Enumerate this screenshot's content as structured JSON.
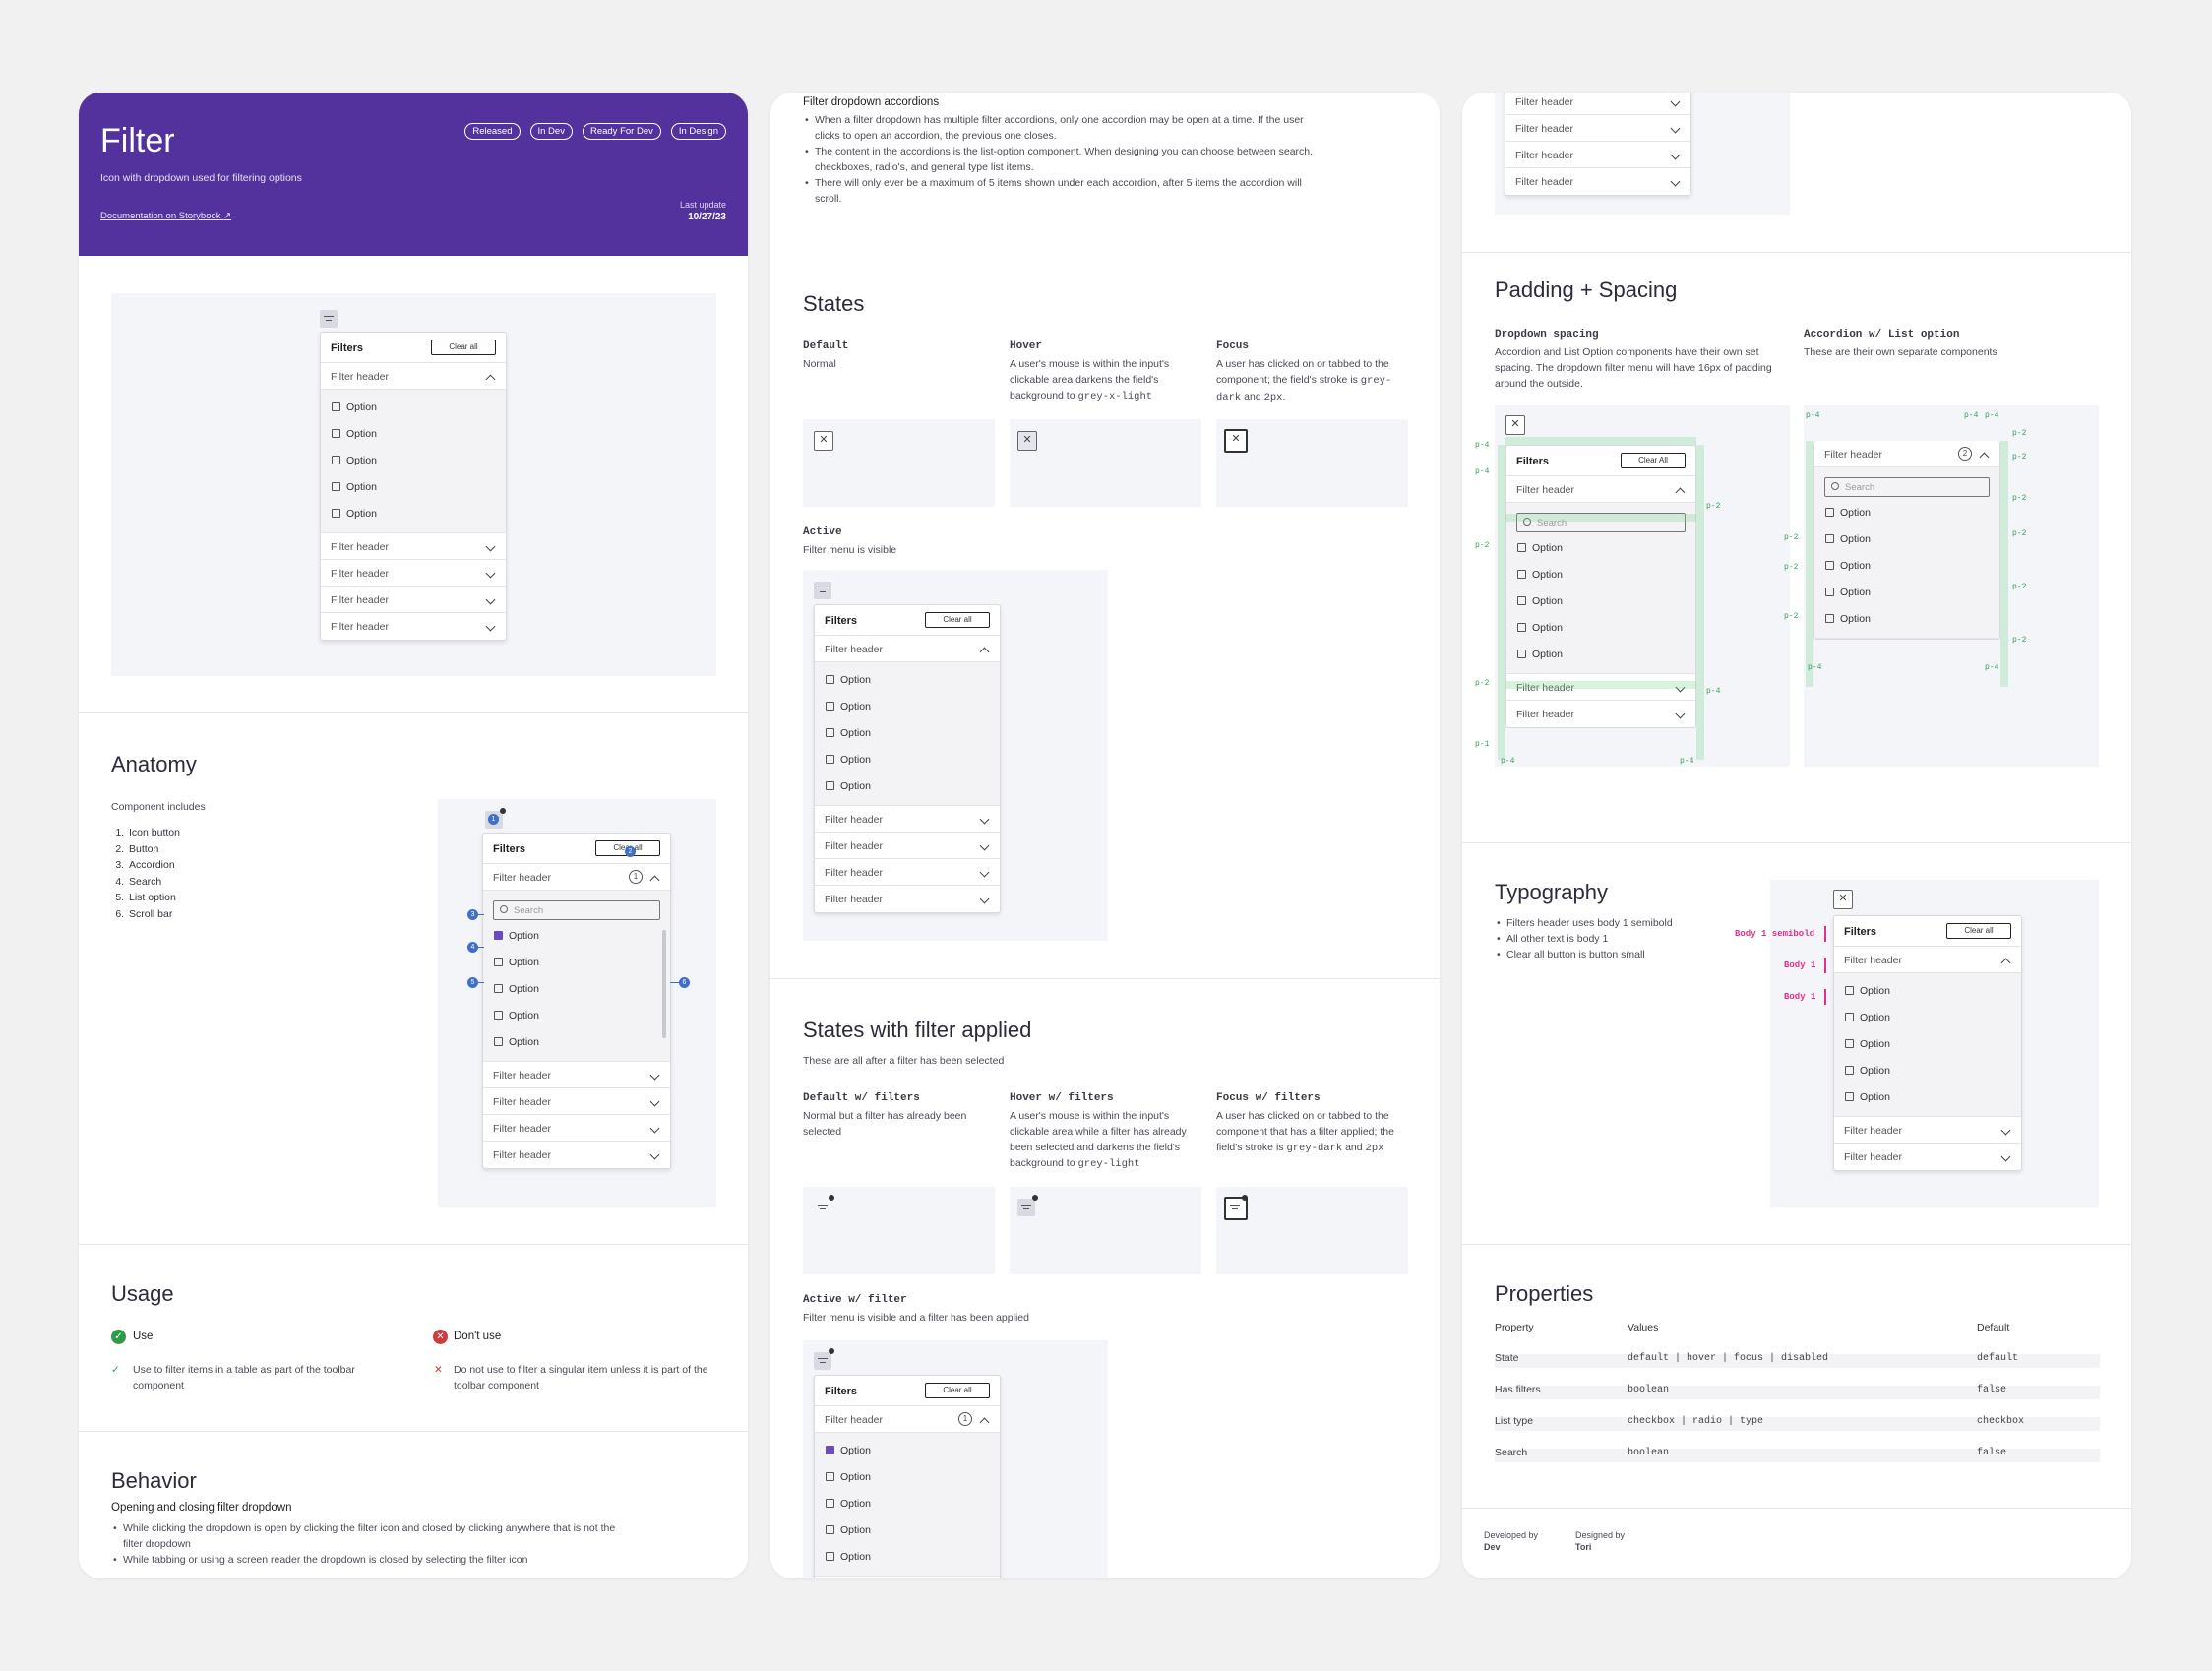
{
  "header": {
    "title": "Filter",
    "subtitle": "Icon with dropdown used for filtering options",
    "doc_link": "Documentation on Storybook",
    "tags": [
      "Released",
      "In Dev",
      "Ready For Dev",
      "In Design"
    ],
    "last_update_label": "Last update",
    "last_update": "10/27/23"
  },
  "panel": {
    "title": "Filters",
    "clear": "Clear all",
    "clear_alt": "Clear All",
    "header": "Filter header",
    "option": "Option",
    "search": "Search"
  },
  "anatomy": {
    "title": "Anatomy",
    "intro": "Component includes",
    "items": [
      "Icon button",
      "Button",
      "Accordion",
      "Search",
      "List option",
      "Scroll bar"
    ],
    "nums": [
      "1",
      "2",
      "3",
      "4",
      "5",
      "6"
    ],
    "count": "1"
  },
  "usage": {
    "title": "Usage",
    "use": "Use",
    "dont": "Don't use",
    "use_text": "Use to filter items in a table as part of the toolbar component",
    "dont_text": "Do not use to filter a singular item unless it is part of the toolbar component"
  },
  "behavior": {
    "title": "Behavior",
    "sub": "Opening and closing filter dropdown",
    "bullets": [
      "While clicking the dropdown is open by clicking the filter icon and closed by clicking anywhere that is not the filter dropdown",
      "While tabbing or using a screen reader the dropdown is closed by selecting the filter icon"
    ]
  },
  "accordions": {
    "title": "Filter dropdown accordions",
    "bullets": [
      "When a filter dropdown has multiple filter accordions, only one accordion may be open at a time. If the user clicks to open an accordion, the previous one closes.",
      "The content in the accordions is the list-option component. When designing you can choose between search, checkboxes, radio's, and general type list items.",
      "There will only ever be a maximum of 5 items shown under each accordion, after 5 items the accordion will scroll."
    ]
  },
  "states": {
    "title": "States",
    "default_l": "Default",
    "default_d": "Normal",
    "hover_l": "Hover",
    "hover_d1": "A user's mouse is within the input's clickable area darkens the field's background to ",
    "hover_c": "grey-x-light",
    "focus_l": "Focus",
    "focus_d1": "A user has clicked on or tabbed to the component; the field's stroke is ",
    "focus_c1": "grey-dark",
    "focus_d2": " and ",
    "focus_c2": "2px",
    "focus_d3": ".",
    "active_l": "Active",
    "active_d": "Filter menu is visible"
  },
  "applied": {
    "title": "States with filter applied",
    "intro": "These are all after a filter has been selected",
    "default_l": "Default w/ filters",
    "default_d": "Normal but a filter has already been selected",
    "hover_l": "Hover w/ filters",
    "hover_d1": "A user's mouse is within the input's clickable area while a filter has already been selected and darkens the field's background to ",
    "hover_c": "grey-light",
    "focus_l": "Focus w/ filters",
    "focus_d1": "A user has clicked on or tabbed to the component that has a filter applied; the field's stroke is ",
    "focus_c1": "grey-dark",
    "focus_d2": " and ",
    "focus_c2": "2px",
    "active_l": "Active w/ filter",
    "active_d": "Filter menu is visible and a filter has been applied",
    "count": "1"
  },
  "padding": {
    "title": "Padding + Spacing",
    "dd_l": "Dropdown spacing",
    "dd_d": "Accordion and List Option components have their own set spacing. The dropdown filter menu will have 16px of padding around the outside.",
    "ao_l": "Accordion w/ List option",
    "ao_d": "These are their own separate components",
    "p4": "p-4",
    "p2": "p-2",
    "p1": "p-1",
    "count": "2"
  },
  "typography": {
    "title": "Typography",
    "bullets": [
      "Filters header uses body 1 semibold",
      "All other text is body 1",
      "Clear all button is button small"
    ],
    "tag_semibold": "Body 1 semibold",
    "tag_body": "Body 1"
  },
  "properties": {
    "title": "Properties",
    "cols": [
      "Property",
      "Values",
      "Default"
    ],
    "rows": [
      [
        "State",
        "default | hover | focus | disabled",
        "default"
      ],
      [
        "Has filters",
        "boolean",
        "false"
      ],
      [
        "List type",
        "checkbox | radio | type",
        "checkbox"
      ],
      [
        "Search",
        "boolean",
        "false"
      ]
    ]
  },
  "footer": {
    "dev_l": "Developed by",
    "dev": "Dev",
    "des_l": "Designed by",
    "des": "Tori"
  },
  "icons": [
    "filter-icon",
    "chevron-down-icon",
    "chevron-up-icon",
    "close-icon",
    "search-icon",
    "checkbox-icon",
    "check-icon",
    "x-icon",
    "external-link-icon"
  ]
}
